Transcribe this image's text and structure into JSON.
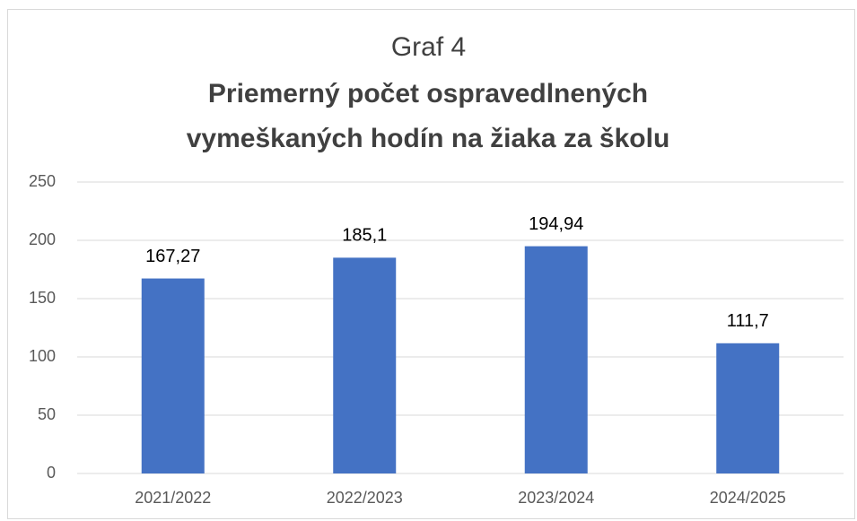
{
  "chart_data": {
    "type": "bar",
    "title": "Graf 4",
    "subtitle": "Priemerný počet ospravedlnených vymeškaných hodín na žiaka za školu",
    "categories": [
      "2021/2022",
      "2022/2023",
      "2023/2024",
      "2024/2025"
    ],
    "values": [
      167.27,
      185.1,
      194.94,
      111.7
    ],
    "value_labels": [
      "167,27",
      "185,1",
      "194,94",
      "111,7"
    ],
    "color": "#4472c4",
    "ylim": [
      0,
      250
    ],
    "yticks": [
      0,
      50,
      100,
      150,
      200,
      250
    ],
    "grid": true
  }
}
